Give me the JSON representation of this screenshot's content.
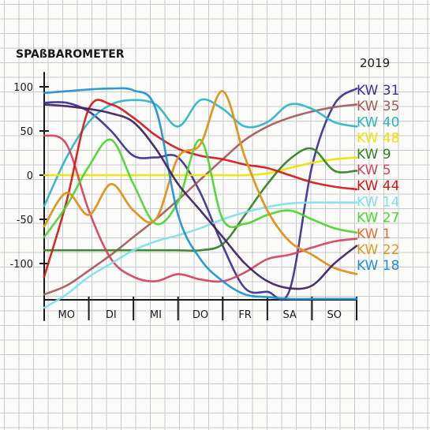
{
  "chart_data": {
    "type": "line",
    "title": "SPAßBAROMETER",
    "year": "2019",
    "categories": [
      "MO",
      "DI",
      "MI",
      "DO",
      "FR",
      "SA",
      "SO"
    ],
    "x": [
      0,
      0.5,
      1,
      1.5,
      2,
      2.5,
      3,
      3.5,
      4,
      4.5,
      5,
      5.5,
      6,
      6.5,
      7
    ],
    "ylim": [
      -140,
      110
    ],
    "yticks": [
      100,
      50,
      0,
      -50,
      -100
    ],
    "ytick_labels": [
      "100",
      "50",
      "0",
      "-50",
      "-100"
    ],
    "series": [
      {
        "name": "KW 31",
        "color": "#3c2f93",
        "values": [
          82,
          82,
          72,
          50,
          22,
          20,
          20,
          -20,
          -80,
          -128,
          -132,
          -130,
          10,
          80,
          98
        ]
      },
      {
        "name": "KW 35",
        "color": "#a45a5a",
        "values": [
          -135,
          -125,
          -108,
          -90,
          -70,
          -50,
          -28,
          -5,
          18,
          40,
          55,
          65,
          72,
          77,
          80
        ]
      },
      {
        "name": "KW 40",
        "color": "#2ab5c4",
        "values": [
          -35,
          20,
          60,
          80,
          85,
          80,
          55,
          85,
          75,
          55,
          60,
          80,
          75,
          60,
          55
        ]
      },
      {
        "name": "KW 48",
        "color": "#ece400",
        "values": [
          0,
          0,
          0,
          0,
          0,
          0,
          0,
          0,
          0,
          0,
          2,
          8,
          14,
          18,
          20
        ]
      },
      {
        "name": "KW 9",
        "color": "#2e8220",
        "values": [
          -85,
          -85,
          -85,
          -85,
          -85,
          -85,
          -85,
          -85,
          -78,
          -45,
          -10,
          18,
          30,
          5,
          5
        ]
      },
      {
        "name": "KW 5",
        "color": "#d3425a",
        "values": [
          45,
          35,
          -40,
          -95,
          -115,
          -120,
          -112,
          -118,
          -120,
          -110,
          -95,
          -90,
          -82,
          -75,
          -72
        ]
      },
      {
        "name": "KW 44",
        "color": "#d01818",
        "values": [
          -115,
          -30,
          75,
          80,
          65,
          45,
          30,
          22,
          18,
          12,
          8,
          0,
          -8,
          -13,
          -16
        ]
      },
      {
        "name": "KW 14",
        "color": "#7fe0ec",
        "values": [
          -150,
          -135,
          -115,
          -100,
          -85,
          -75,
          -68,
          -60,
          -50,
          -42,
          -36,
          -32,
          -31,
          -31,
          -31
        ]
      },
      {
        "name": "KW 27",
        "color": "#49d62e",
        "values": [
          -70,
          -35,
          10,
          40,
          -10,
          -55,
          -30,
          40,
          -50,
          -55,
          -45,
          -40,
          -50,
          -60,
          -65
        ]
      },
      {
        "name": "KW 1",
        "color": "#e06f2a",
        "values": [
          -58,
          -20,
          -45,
          -10,
          -40,
          -50,
          20,
          35,
          95,
          20,
          -40,
          -75,
          -90,
          -105,
          -112
        ]
      },
      {
        "name": "KW 22",
        "color": "#de9a22",
        "values": [
          -58,
          -20,
          -45,
          -10,
          -40,
          -50,
          20,
          35,
          95,
          20,
          -40,
          -75,
          -90,
          -105,
          -112
        ]
      },
      {
        "name": "KW 18",
        "color": "#1e8fd0",
        "values": [
          93,
          95,
          97,
          98,
          96,
          75,
          -45,
          -95,
          -120,
          -135,
          -138,
          -140,
          -140,
          -140,
          -140
        ]
      },
      {
        "name": "",
        "color": "#3e2060",
        "values": [
          80,
          78,
          75,
          70,
          60,
          30,
          -10,
          -40,
          -70,
          -100,
          -120,
          -128,
          -125,
          -100,
          -80
        ]
      }
    ]
  },
  "colors": {
    "paper": "#fbfbfa",
    "grid": "#c9c9cb",
    "ink": "#1a1a1a"
  }
}
